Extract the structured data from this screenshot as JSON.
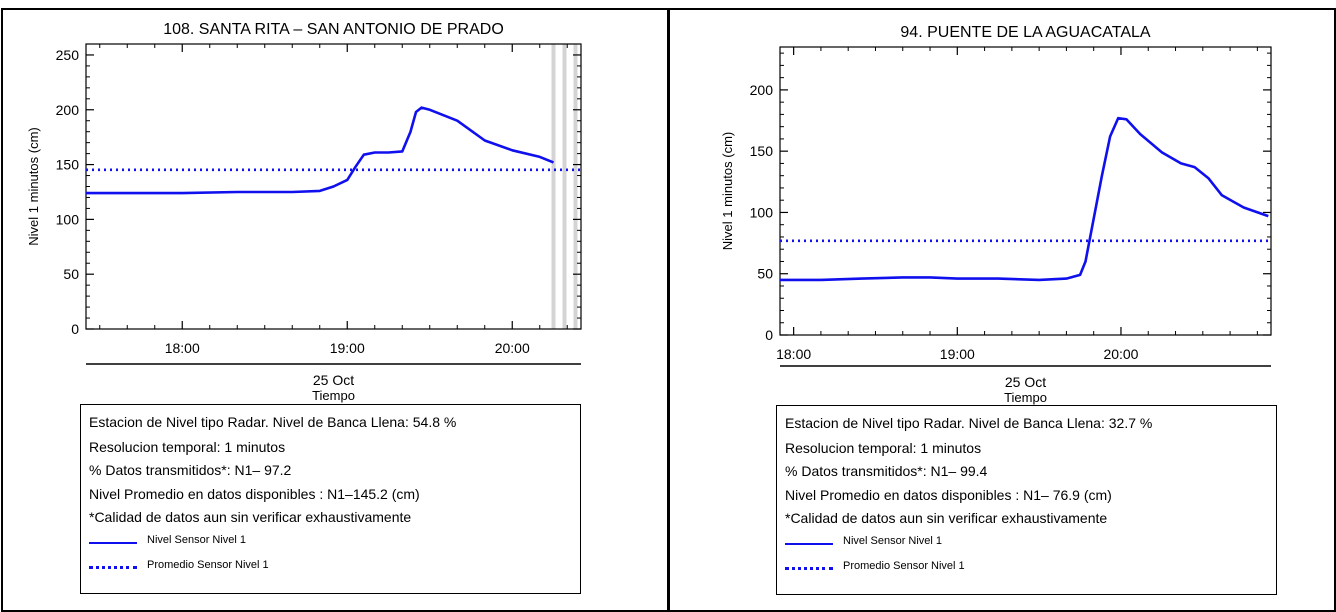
{
  "colors": {
    "series": "#1010ee",
    "axis": "#000000",
    "shading": "#d4d4d4"
  },
  "panels": [
    {
      "title": "108. SANTA RITA – SAN ANTONIO DE PRADO",
      "info": {
        "line1": "Estacion de Nivel tipo Radar. Nivel de Banca Llena: 54.8 %",
        "line2": "Resolucion temporal: 1 minutos",
        "line3": "% Datos transmitidos*: N1– 97.2",
        "line4": "Nivel Promedio en datos disponibles : N1–145.2 (cm)",
        "line5": "*Calidad de datos aun sin verificar exhaustivamente"
      },
      "legend": {
        "solid": "Nivel Sensor Nivel 1",
        "dotted": "Promedio Sensor Nivel 1"
      }
    },
    {
      "title": "94. PUENTE DE LA AGUACATALA",
      "info": {
        "line1": "Estacion de Nivel tipo Radar. Nivel de Banca Llena: 32.7 %",
        "line2": "Resolucion temporal: 1 minutos",
        "line3": "% Datos transmitidos*: N1– 99.4",
        "line4": "Nivel Promedio en datos disponibles : N1– 76.9 (cm)",
        "line5": "*Calidad de datos aun sin verificar exhaustivamente"
      },
      "legend": {
        "solid": "Nivel Sensor Nivel 1",
        "dotted": "Promedio Sensor Nivel 1"
      }
    }
  ],
  "chart_data": [
    {
      "type": "line",
      "title": "108. SANTA RITA – SAN ANTONIO DE PRADO",
      "xlabel": "Tiempo",
      "date_label": "25 Oct",
      "ylabel": "Nivel 1 minutos (cm)",
      "xlim": [
        "17:25",
        "20:25"
      ],
      "ylim": [
        0,
        260
      ],
      "x_ticks": [
        "18:00",
        "19:00",
        "20:00"
      ],
      "y_ticks": [
        0,
        50,
        100,
        150,
        200,
        250
      ],
      "grid": false,
      "shaded_x": [
        "20:15",
        "20:19",
        "20:23"
      ],
      "series": [
        {
          "name": "Nivel Sensor Nivel 1",
          "style": "solid",
          "x": [
            "17:25",
            "17:40",
            "18:00",
            "18:20",
            "18:40",
            "18:50",
            "18:55",
            "19:00",
            "19:03",
            "19:06",
            "19:10",
            "19:15",
            "19:20",
            "19:23",
            "19:25",
            "19:27",
            "19:30",
            "19:40",
            "19:50",
            "20:00",
            "20:10",
            "20:15"
          ],
          "y": [
            124,
            124,
            124,
            125,
            125,
            126,
            130,
            136,
            148,
            159,
            161,
            161,
            162,
            180,
            198,
            202,
            200,
            190,
            172,
            163,
            157,
            152
          ]
        },
        {
          "name": "Promedio Sensor Nivel 1",
          "style": "dotted",
          "x": [
            "17:25",
            "20:25"
          ],
          "y": [
            145.2,
            145.2
          ]
        }
      ]
    },
    {
      "type": "line",
      "title": "94. PUENTE DE LA AGUACATALA",
      "xlabel": "Tiempo",
      "date_label": "25 Oct",
      "ylabel": "Nivel 1 minutos (cm)",
      "xlim": [
        "17:55",
        "20:55"
      ],
      "ylim": [
        0,
        235
      ],
      "x_ticks": [
        "18:00",
        "19:00",
        "20:00"
      ],
      "y_ticks": [
        0,
        50,
        100,
        150,
        200
      ],
      "grid": false,
      "series": [
        {
          "name": "Nivel Sensor Nivel 1",
          "style": "solid",
          "x": [
            "17:55",
            "18:10",
            "18:25",
            "18:40",
            "18:50",
            "19:00",
            "19:15",
            "19:30",
            "19:40",
            "19:45",
            "19:47",
            "19:50",
            "19:53",
            "19:56",
            "19:59",
            "20:02",
            "20:07",
            "20:15",
            "20:22",
            "20:27",
            "20:32",
            "20:37",
            "20:45",
            "20:54"
          ],
          "y": [
            45,
            45,
            46,
            47,
            47,
            46,
            46,
            45,
            46,
            49,
            60,
            95,
            130,
            162,
            177,
            176,
            164,
            149,
            140,
            137,
            128,
            114,
            104,
            97
          ]
        },
        {
          "name": "Promedio Sensor Nivel 1",
          "style": "dotted",
          "x": [
            "17:55",
            "20:55"
          ],
          "y": [
            76.9,
            76.9
          ]
        }
      ]
    }
  ]
}
